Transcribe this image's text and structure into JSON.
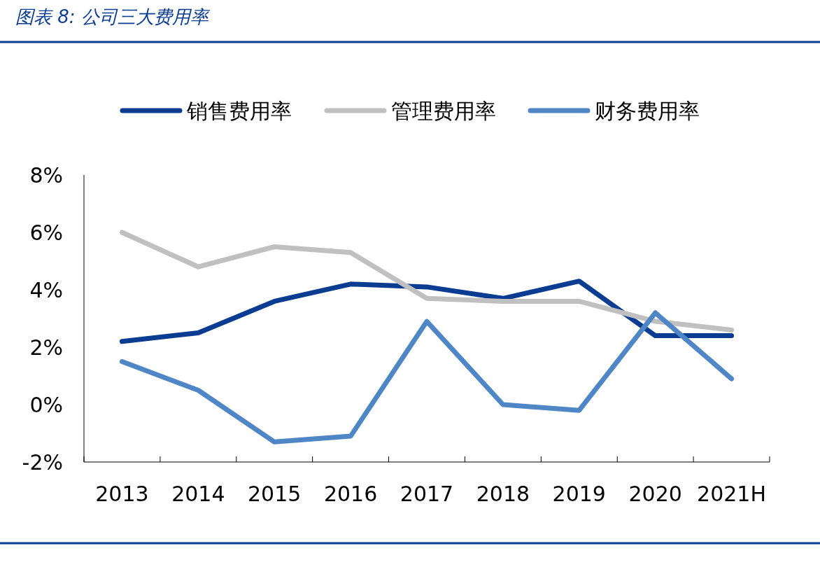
{
  "chart_data": {
    "type": "line",
    "title": "图表 8:  公司三大费用率",
    "categories": [
      "2013",
      "2014",
      "2015",
      "2016",
      "2017",
      "2018",
      "2019",
      "2020",
      "2021H"
    ],
    "series": [
      {
        "name": "销售费用率",
        "color": "#0a3d91",
        "values": [
          2.2,
          2.5,
          3.6,
          4.2,
          4.1,
          3.7,
          4.3,
          2.4,
          2.4
        ]
      },
      {
        "name": "管理费用率",
        "color": "#c0c0c0",
        "values": [
          6.0,
          4.8,
          5.5,
          5.3,
          3.7,
          3.6,
          3.6,
          2.9,
          2.6
        ]
      },
      {
        "name": "财务费用率",
        "color": "#4f86c6",
        "values": [
          1.5,
          0.5,
          -1.3,
          -1.1,
          2.9,
          0.0,
          -0.2,
          3.2,
          0.9
        ]
      }
    ],
    "ylim": [
      -2,
      8
    ],
    "yticks": [
      {
        "value": -2,
        "label": "-2%"
      },
      {
        "value": 0,
        "label": "0%"
      },
      {
        "value": 2,
        "label": "2%"
      },
      {
        "value": 4,
        "label": "4%"
      },
      {
        "value": 6,
        "label": "6%"
      },
      {
        "value": 8,
        "label": "8%"
      }
    ],
    "legend": "top"
  }
}
